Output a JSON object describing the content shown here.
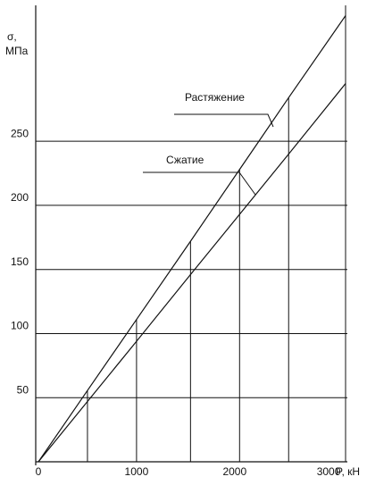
{
  "chart_data": {
    "type": "line",
    "ylabel": [
      "σ,",
      "МПа"
    ],
    "xlabel": "P, кН",
    "x": [
      0,
      500,
      1000,
      1550,
      2050,
      2550,
      3130
    ],
    "series": [
      {
        "name": "Растяжение",
        "color": "#111111",
        "values": [
          0,
          55.6,
          111,
          172,
          228,
          284,
          348
        ],
        "droplines": true
      },
      {
        "name": "Сжатие",
        "color": "#111111",
        "values": [
          0,
          47,
          94,
          146,
          193,
          240,
          295
        ],
        "droplines": false
      }
    ],
    "xlim": [
      0,
      3130
    ],
    "ylim": [
      0,
      356
    ],
    "xticks": [
      0,
      1000,
      2000,
      3000
    ],
    "yticks": [
      50,
      100,
      150,
      200,
      250
    ],
    "grid": true
  }
}
